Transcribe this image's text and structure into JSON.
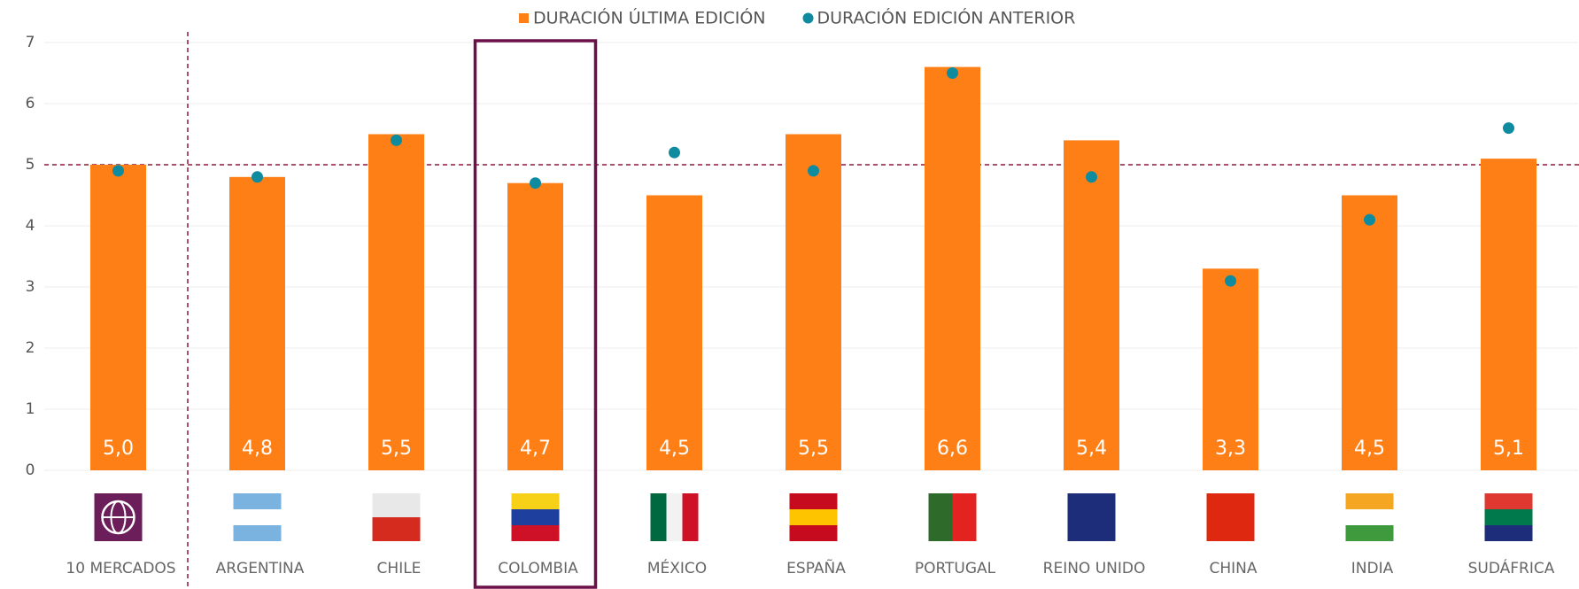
{
  "chart_data": {
    "type": "bar",
    "categories": [
      "10 MERCADOS",
      "ARGENTINA",
      "CHILE",
      "COLOMBIA",
      "MÉXICO",
      "ESPAÑA",
      "PORTUGAL",
      "REINO UNIDO",
      "CHINA",
      "INDIA",
      "SUDÁFRICA"
    ],
    "series": [
      {
        "name": "DURACIÓN ÚLTIMA EDICIÓN",
        "color": "#ff7f17",
        "style": "bar",
        "values": [
          5.0,
          4.8,
          5.5,
          4.7,
          4.5,
          5.5,
          6.6,
          5.4,
          3.3,
          4.5,
          5.1
        ],
        "value_labels": [
          "5,0",
          "4,8",
          "5,5",
          "4,7",
          "4,5",
          "5,5",
          "6,6",
          "5,4",
          "3,3",
          "4,5",
          "5,1"
        ]
      },
      {
        "name": "DURACIÓN EDICIÓN ANTERIOR",
        "color": "#0e8b9e",
        "style": "dot",
        "values": [
          4.9,
          4.8,
          5.4,
          4.7,
          5.2,
          4.9,
          6.5,
          4.8,
          3.1,
          4.1,
          5.6
        ]
      }
    ],
    "ylim": [
      0,
      7
    ],
    "yticks": [
      0,
      1,
      2,
      3,
      4,
      5,
      6,
      7
    ],
    "grid": true,
    "reference_line": 5,
    "highlight": "COLOMBIA",
    "legend": "top"
  }
}
